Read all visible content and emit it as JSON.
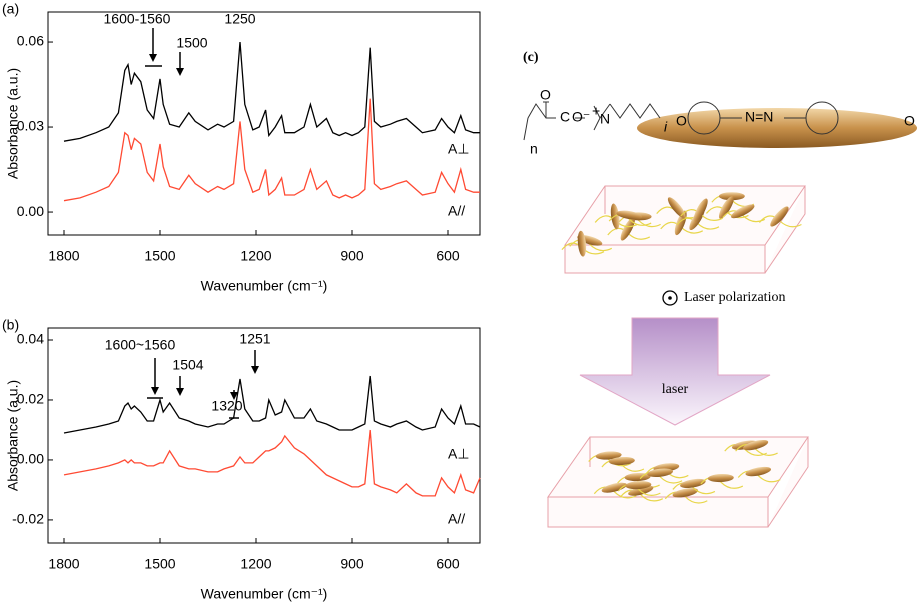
{
  "chart_data": [
    {
      "type": "line",
      "panel": "(a)",
      "ylabel": "Absorbance (a.u.)",
      "xlabel": "Wavenumber (cm⁻¹)",
      "x": [
        1800,
        1750,
        1700,
        1660,
        1630,
        1610,
        1600,
        1590,
        1580,
        1560,
        1540,
        1520,
        1500,
        1490,
        1470,
        1440,
        1410,
        1390,
        1350,
        1320,
        1300,
        1270,
        1250,
        1235,
        1210,
        1190,
        1170,
        1160,
        1140,
        1120,
        1110,
        1080,
        1050,
        1030,
        1010,
        980,
        960,
        940,
        920,
        900,
        880,
        860,
        843,
        830,
        810,
        780,
        760,
        730,
        700,
        680,
        640,
        620,
        600,
        580,
        560,
        545,
        520,
        500
      ],
      "series": [
        {
          "name": "A⊥",
          "color": "#000000",
          "values": [
            0.025,
            0.026,
            0.028,
            0.03,
            0.035,
            0.05,
            0.052,
            0.045,
            0.049,
            0.046,
            0.036,
            0.033,
            0.047,
            0.038,
            0.031,
            0.03,
            0.035,
            0.032,
            0.029,
            0.031,
            0.03,
            0.032,
            0.06,
            0.038,
            0.029,
            0.03,
            0.036,
            0.027,
            0.03,
            0.034,
            0.028,
            0.028,
            0.03,
            0.038,
            0.03,
            0.033,
            0.028,
            0.027,
            0.028,
            0.027,
            0.028,
            0.03,
            0.058,
            0.032,
            0.03,
            0.031,
            0.032,
            0.033,
            0.03,
            0.028,
            0.029,
            0.033,
            0.03,
            0.028,
            0.034,
            0.029,
            0.028,
            0.028
          ]
        },
        {
          "name": "A//",
          "color": "#ff4a33",
          "values": [
            0.004,
            0.005,
            0.007,
            0.009,
            0.014,
            0.028,
            0.027,
            0.022,
            0.026,
            0.024,
            0.014,
            0.011,
            0.024,
            0.016,
            0.009,
            0.008,
            0.013,
            0.01,
            0.007,
            0.009,
            0.008,
            0.01,
            0.032,
            0.015,
            0.007,
            0.008,
            0.015,
            0.006,
            0.008,
            0.012,
            0.006,
            0.006,
            0.008,
            0.015,
            0.008,
            0.011,
            0.006,
            0.005,
            0.006,
            0.005,
            0.006,
            0.008,
            0.04,
            0.01,
            0.008,
            0.009,
            0.01,
            0.011,
            0.008,
            0.006,
            0.007,
            0.014,
            0.01,
            0.007,
            0.015,
            0.008,
            0.007,
            0.007
          ]
        }
      ],
      "xlim": [
        1850,
        500
      ],
      "ylim": [
        -0.0081,
        0.0706
      ],
      "xticks": [
        1800,
        1500,
        1200,
        900,
        600
      ],
      "yticks": [
        {
          "value": 0,
          "label": "0.00"
        },
        0.03,
        0.06
      ],
      "annotations": [
        "1600-1560",
        "1500",
        "1250"
      ]
    },
    {
      "type": "line",
      "panel": "(b)",
      "ylabel": "Absorbance (a.u.)",
      "xlabel": "Wavenumber (cm⁻¹)",
      "x": [
        1800,
        1750,
        1700,
        1660,
        1630,
        1610,
        1600,
        1590,
        1580,
        1560,
        1540,
        1520,
        1500,
        1490,
        1470,
        1440,
        1410,
        1390,
        1350,
        1320,
        1300,
        1270,
        1250,
        1235,
        1210,
        1190,
        1170,
        1160,
        1140,
        1120,
        1110,
        1080,
        1050,
        1030,
        1010,
        980,
        960,
        940,
        920,
        900,
        880,
        860,
        843,
        830,
        810,
        780,
        760,
        730,
        700,
        680,
        640,
        620,
        600,
        580,
        560,
        545,
        520,
        500
      ],
      "series": [
        {
          "name": "A⊥",
          "color": "#000000",
          "values": [
            0.009,
            0.01,
            0.011,
            0.012,
            0.013,
            0.018,
            0.019,
            0.017,
            0.018,
            0.016,
            0.013,
            0.013,
            0.02,
            0.016,
            0.019,
            0.014,
            0.013,
            0.012,
            0.011,
            0.012,
            0.012,
            0.014,
            0.027,
            0.017,
            0.013,
            0.013,
            0.014,
            0.02,
            0.015,
            0.016,
            0.02,
            0.014,
            0.014,
            0.017,
            0.013,
            0.012,
            0.011,
            0.01,
            0.01,
            0.01,
            0.011,
            0.012,
            0.028,
            0.013,
            0.012,
            0.011,
            0.012,
            0.013,
            0.011,
            0.01,
            0.011,
            0.017,
            0.014,
            0.012,
            0.018,
            0.012,
            0.012,
            0.011
          ]
        },
        {
          "name": "A//",
          "color": "#ff4a33",
          "values": [
            -0.005,
            -0.004,
            -0.003,
            -0.002,
            -0.001,
            0.0,
            -0.001,
            0.0,
            -0.001,
            -0.001,
            -0.002,
            -0.002,
            -0.001,
            -0.001,
            0.003,
            -0.002,
            -0.003,
            -0.003,
            -0.004,
            -0.004,
            -0.003,
            -0.002,
            0.001,
            -0.001,
            -0.001,
            0.001,
            0.003,
            0.003,
            0.004,
            0.006,
            0.008,
            0.004,
            0.002,
            0.0,
            -0.002,
            -0.005,
            -0.006,
            -0.007,
            -0.008,
            -0.009,
            -0.009,
            -0.008,
            0.01,
            -0.008,
            -0.009,
            -0.01,
            -0.011,
            -0.008,
            -0.011,
            -0.012,
            -0.012,
            -0.006,
            -0.009,
            -0.011,
            -0.005,
            -0.01,
            -0.011,
            -0.006
          ]
        }
      ],
      "xlim": [
        1850,
        500
      ],
      "ylim": [
        -0.0277,
        0.044
      ],
      "xticks": [
        1800,
        1500,
        1200,
        900,
        600
      ],
      "yticks": [
        -0.02,
        {
          "value": 0,
          "label": "0.00"
        },
        0.02,
        0.04
      ],
      "annotations": [
        "1600~1560",
        "1504",
        "1320",
        "1251"
      ]
    }
  ],
  "diagram": {
    "label": "(c)",
    "polarization": "Laser polarization",
    "arrow_label": "laser",
    "structure_labels": [
      "O",
      "C",
      "O⁻",
      "+",
      "N",
      "n",
      "i",
      "O",
      "N=N",
      "O"
    ]
  }
}
